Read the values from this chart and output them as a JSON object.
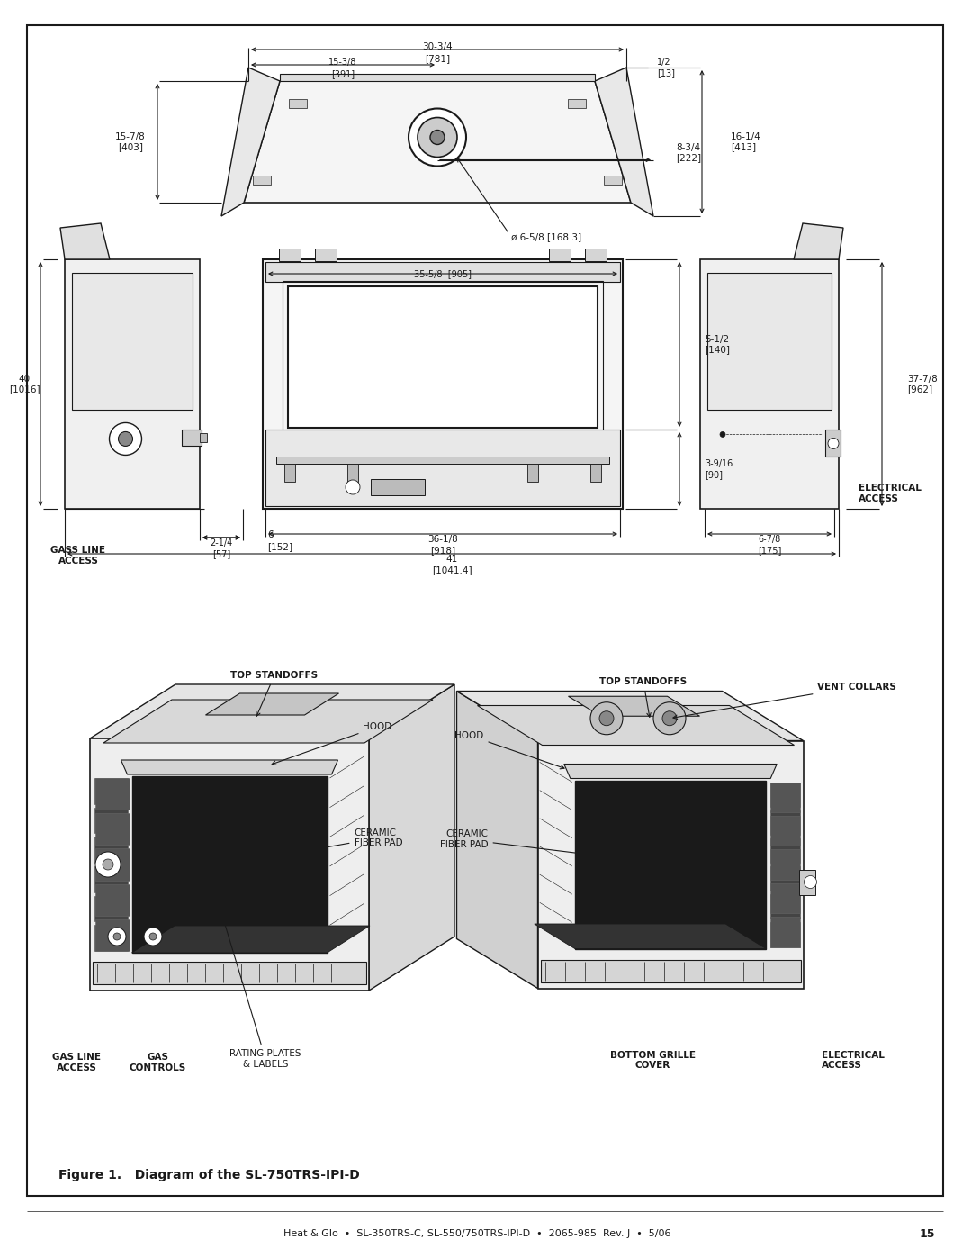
{
  "title": "Figure 1.   Diagram of the SL-750TRS-IPI-D",
  "footer": "Heat & Glo  •  SL-350TRS-C, SL-550/750TRS-IPI-D  •  2065-985  Rev. J  •  5/06",
  "page_num": "15",
  "bg_color": "#ffffff",
  "top_dims": {
    "width_label": "30-3/4",
    "width_mm": "[781]",
    "half_label": "15-3/8",
    "half_mm": "[391]",
    "right1_label": "1/2",
    "right1_mm": "[13]",
    "right2_label": "16-1/4",
    "right2_mm": "[413]",
    "left1_label": "15-7/8",
    "left1_mm": "[403]",
    "center_label": "8-3/4",
    "center_mm": "[222]",
    "vent_label": "ø 6-5/8 [168.3]"
  },
  "front_dims": {
    "height_label": "40",
    "height_mm": "[1016]",
    "left_label": "2-1/4",
    "left_mm": "[57]",
    "width_label": "35-5/8",
    "width_mm": "[905]",
    "right1_label": "5-1/2",
    "right1_mm": "[140]",
    "right2_label": "3-9/16",
    "right2_mm": "[90]",
    "bottom_label1": "36-1/8",
    "bottom_mm1": "[918]",
    "bottom_label2": "41",
    "bottom_mm2": "[1041.4]",
    "gas_label": "GASS LINE\nACCESS",
    "gas_dim_label": "6",
    "gas_dim_mm": "[152]",
    "elec_label": "ELECTRICAL\nACCESS",
    "right_oa": "37-7/8",
    "right_oa_mm": "[962]",
    "bot_right_label": "6-7/8",
    "bot_right_mm": "[175]"
  },
  "parts": {
    "top_standoffs": "TOP STANDOFFS",
    "hood": "HOOD",
    "ceramic": "CERAMIC\nFIBER PAD",
    "vent_collars": "VENT COLLARS",
    "rating": "RATING PLATES\n& LABELS",
    "gas_line": "GAS LINE\nACCESS",
    "gas_controls": "GAS\nCONTROLS",
    "bottom_grille": "BOTTOM GRILLE\nCOVER",
    "electrical": "ELECTRICAL\nACCESS"
  }
}
